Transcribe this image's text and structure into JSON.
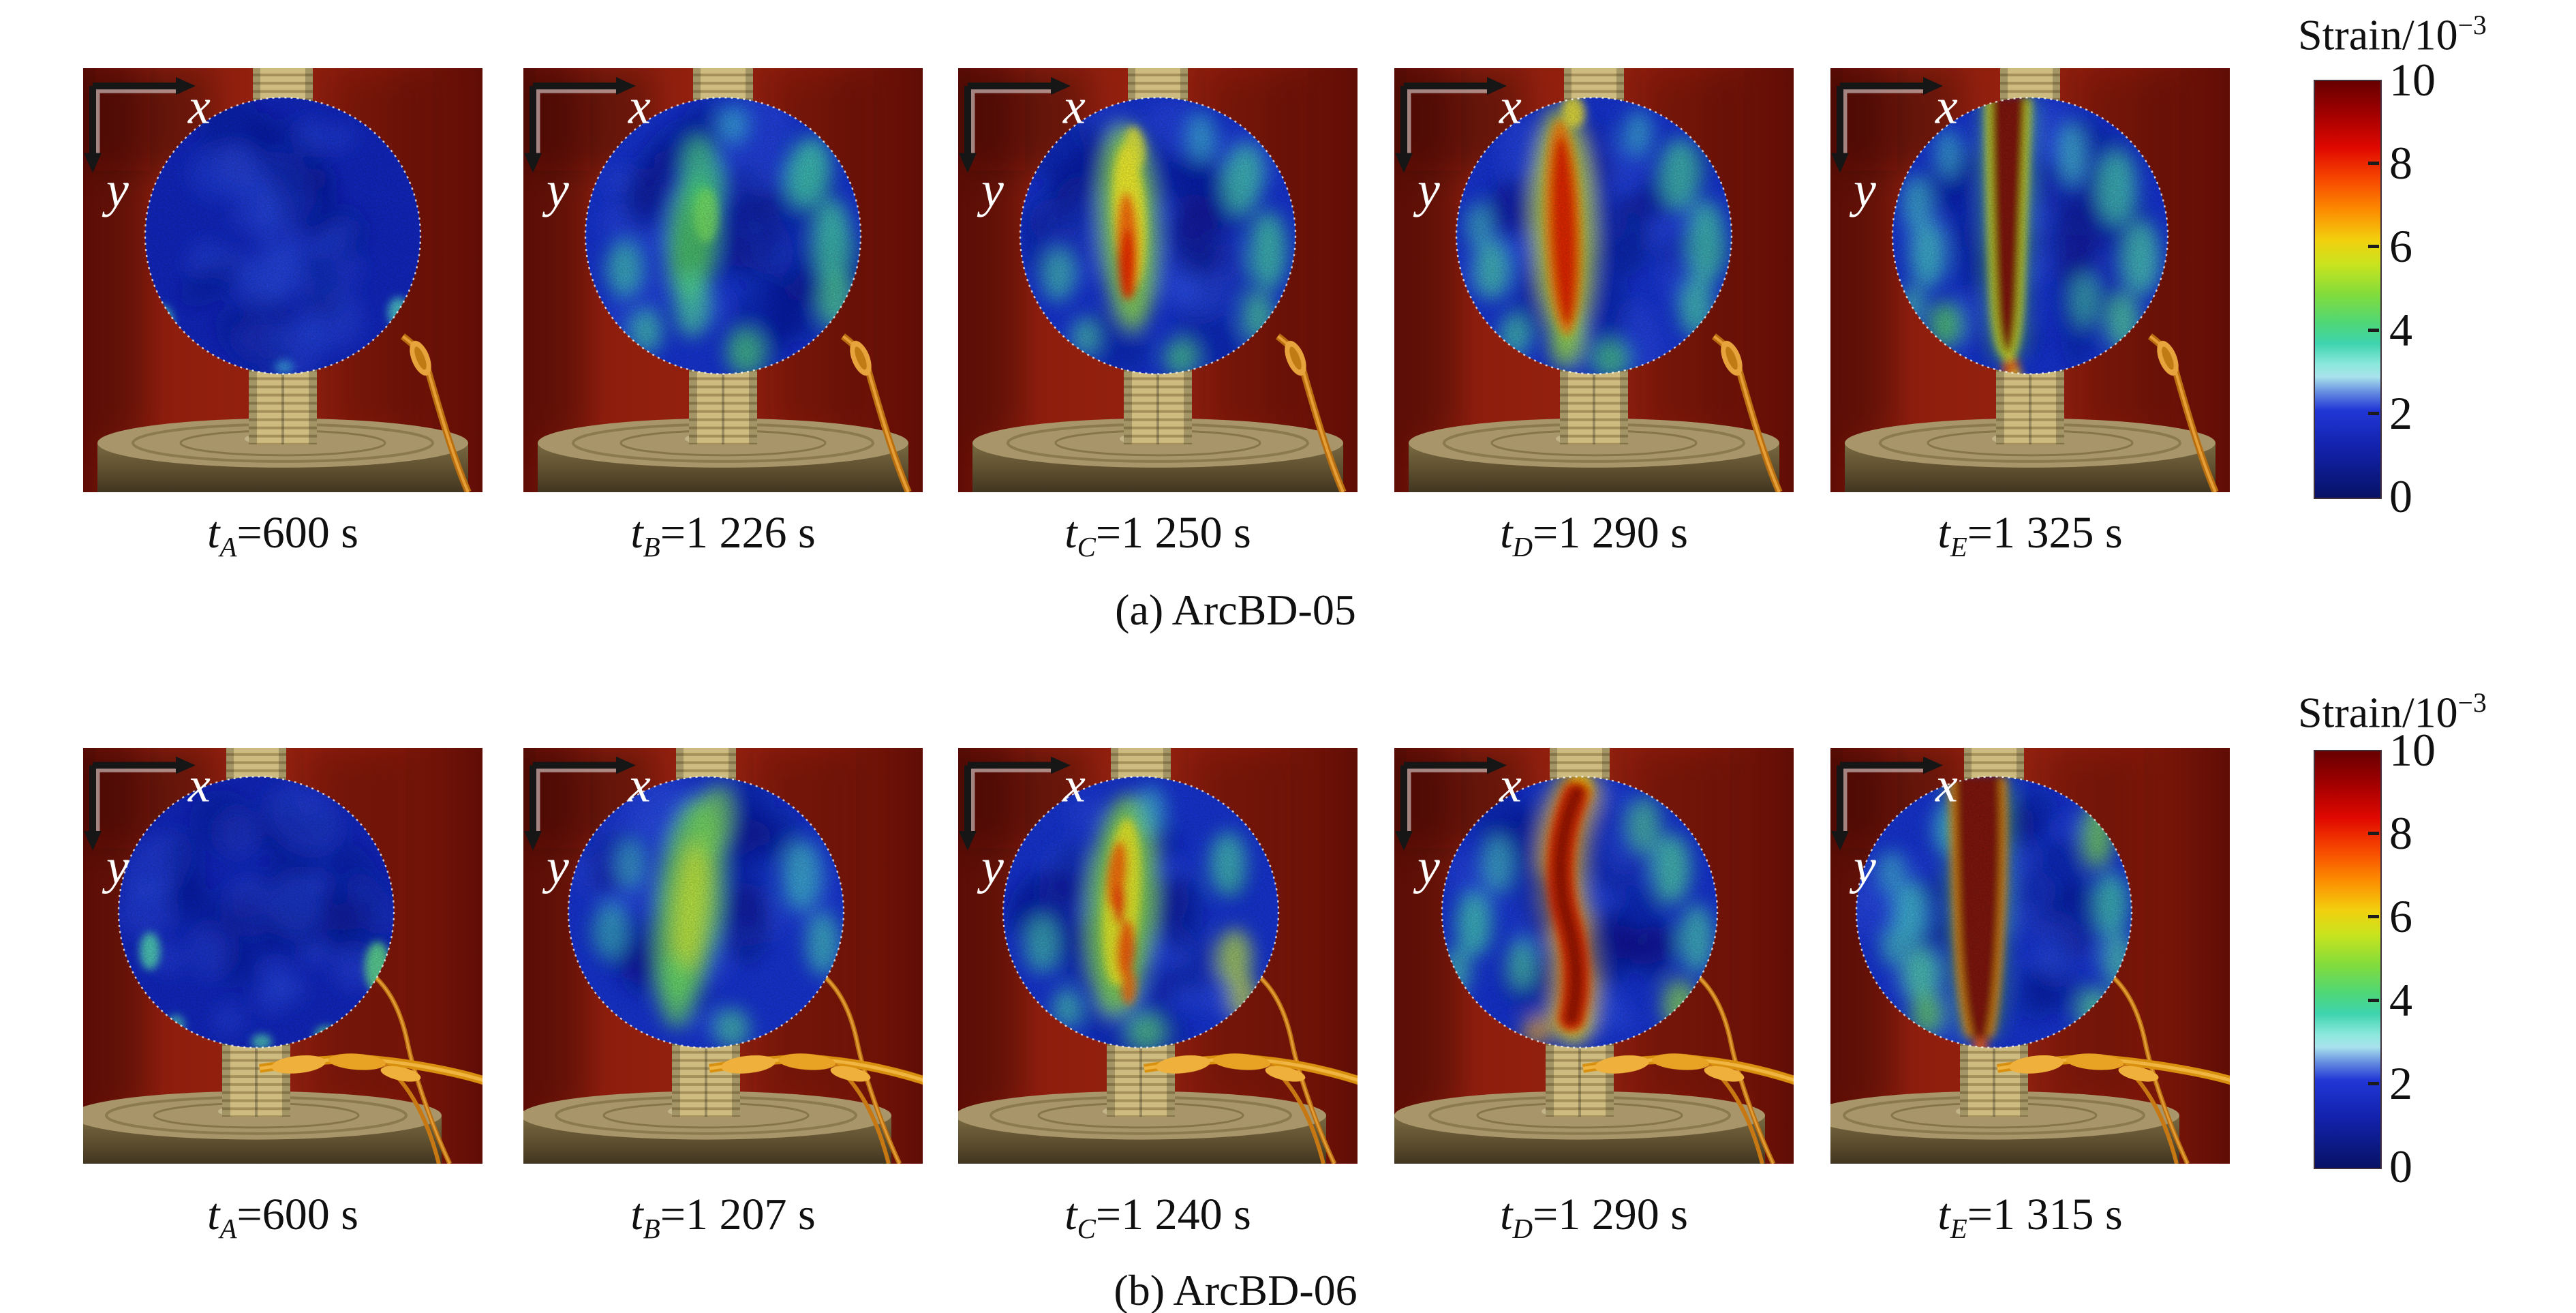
{
  "figure": {
    "axes": {
      "x_label": "x",
      "y_label": "y"
    },
    "colorbar": {
      "title_base": "Strain/10",
      "title_exp": "−3",
      "ticks": [
        "10",
        "8",
        "6",
        "4",
        "2",
        "0"
      ]
    },
    "rows": [
      {
        "id": "a",
        "caption": "(a) ArcBD-05",
        "panels": [
          {
            "time_var": "t",
            "time_sub": "A",
            "time_eq": "=600 s",
            "description": "uniform low strain over the disc"
          },
          {
            "time_var": "t",
            "time_sub": "B",
            "time_eq": "=1 226 s",
            "description": "diffuse moderate strain patches"
          },
          {
            "time_var": "t",
            "time_sub": "C",
            "time_eq": "=1 250 s",
            "description": "vertical strain concentration forming at centre"
          },
          {
            "time_var": "t",
            "time_sub": "D",
            "time_eq": "=1 290 s",
            "description": "high-strain vertical band at centre"
          },
          {
            "time_var": "t",
            "time_sub": "E",
            "time_eq": "=1 325 s",
            "description": "opened vertical crack band through centre"
          }
        ]
      },
      {
        "id": "b",
        "caption": "(b) ArcBD-06",
        "panels": [
          {
            "time_var": "t",
            "time_sub": "A",
            "time_eq": "=600 s",
            "description": "uniform low strain over the disc"
          },
          {
            "time_var": "t",
            "time_sub": "B",
            "time_eq": "=1 207 s",
            "description": "broad green strain streak at centre"
          },
          {
            "time_var": "t",
            "time_sub": "C",
            "time_eq": "=1 240 s",
            "description": "S-shaped streak with orange strain segments"
          },
          {
            "time_var": "t",
            "time_sub": "D",
            "time_eq": "=1 290 s",
            "description": "thick red S-shaped strain band"
          },
          {
            "time_var": "t",
            "time_sub": "E",
            "time_eq": "=1 315 s",
            "description": "wide opened crack zone through centre"
          }
        ]
      }
    ]
  },
  "chart_data": {
    "type": "heatmap",
    "colorbar": {
      "label": "Strain/10⁻³",
      "min": 0,
      "max": 10,
      "tick_values": [
        10,
        8,
        6,
        4,
        2,
        0
      ],
      "colormap": "jet"
    },
    "series": [
      {
        "name": "ArcBD-05",
        "snapshot_labels": [
          "tA",
          "tB",
          "tC",
          "tD",
          "tE"
        ],
        "snapshot_times_s": [
          600,
          1226,
          1250,
          1290,
          1325
        ]
      },
      {
        "name": "ArcBD-06",
        "snapshot_labels": [
          "tA",
          "tB",
          "tC",
          "tD",
          "tE"
        ],
        "snapshot_times_s": [
          600,
          1207,
          1240,
          1290,
          1315
        ]
      }
    ]
  }
}
